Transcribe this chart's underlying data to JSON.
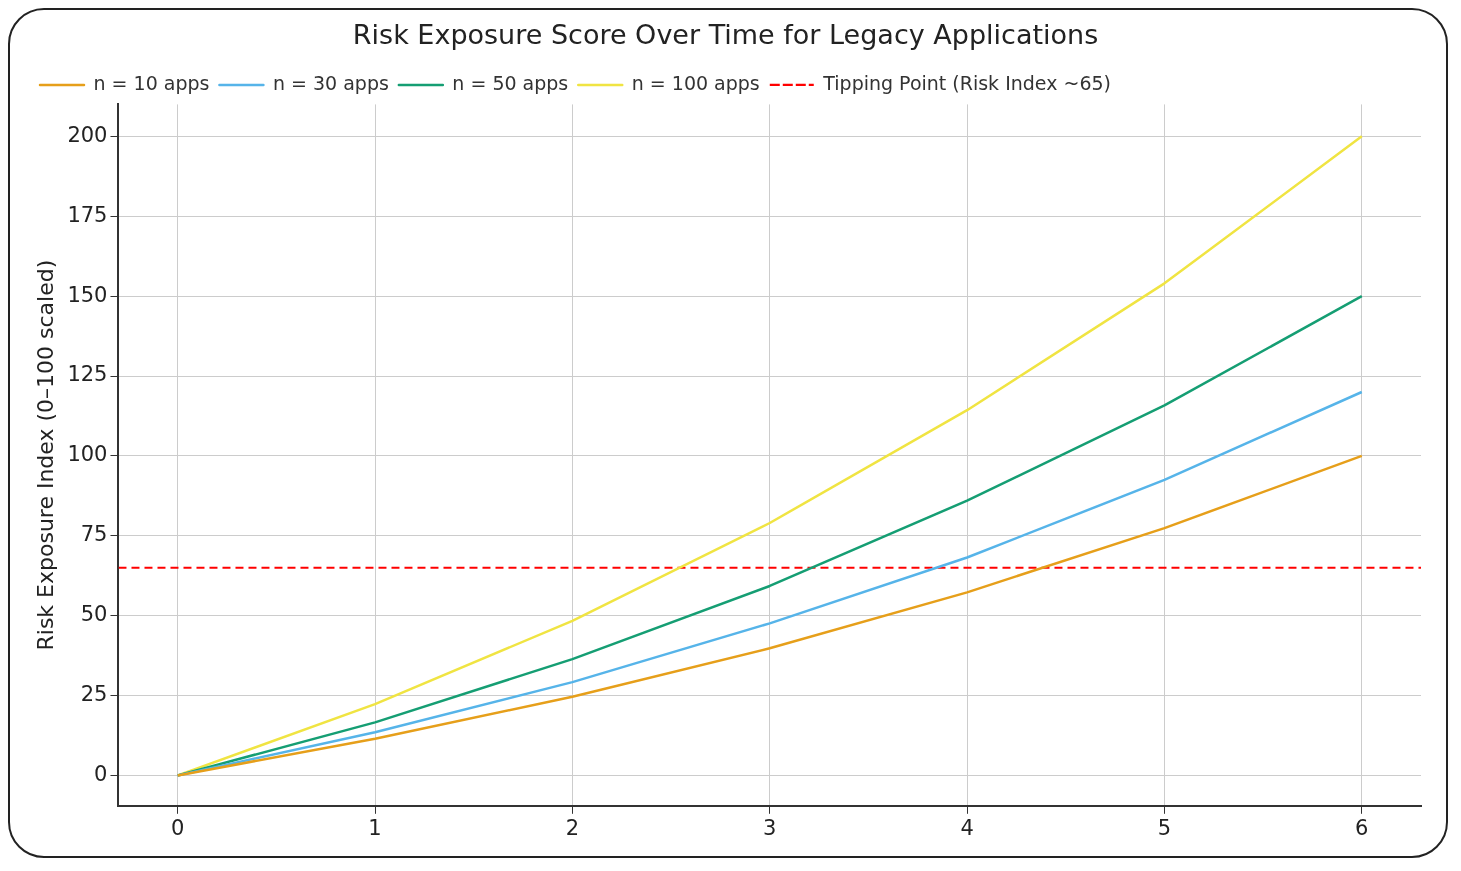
{
  "chart_data": {
    "type": "line",
    "title": "Risk Exposure Score Over Time for Legacy Applications",
    "ylabel": "Risk Exposure Index (0–100 scaled)",
    "x": [
      0,
      1,
      2,
      3,
      4,
      5,
      6
    ],
    "series": [
      {
        "name": "n = 10 apps",
        "color": "#e69f1a",
        "values": [
          0,
          11.5,
          24.6,
          39.8,
          57.3,
          77.4,
          100
        ]
      },
      {
        "name": "n = 30 apps",
        "color": "#56b4e9",
        "values": [
          0,
          13.5,
          29.2,
          47.6,
          68.2,
          92.5,
          120
        ]
      },
      {
        "name": "n = 50 apps",
        "color": "#159e73",
        "values": [
          0,
          16.6,
          36.4,
          59.3,
          86,
          115.8,
          150
        ]
      },
      {
        "name": "n = 100 apps",
        "color": "#f0e442",
        "values": [
          0,
          22.3,
          48.4,
          79,
          114.3,
          154,
          200
        ]
      }
    ],
    "ref_lines": [
      {
        "axis": "y",
        "value": 65,
        "label": "Tipping Point (Risk Index ~65)",
        "color": "#ff0000",
        "line_style": "dashed"
      }
    ],
    "xlim": [
      -0.3,
      6.3
    ],
    "ylim": [
      -9.5,
      210
    ],
    "xticks": [
      0,
      1,
      2,
      3,
      4,
      5,
      6
    ],
    "yticks": [
      0,
      25,
      50,
      75,
      100,
      125,
      150,
      175,
      200
    ],
    "grid": true,
    "legend": "top left",
    "marker": "none",
    "line_style": "solid"
  }
}
